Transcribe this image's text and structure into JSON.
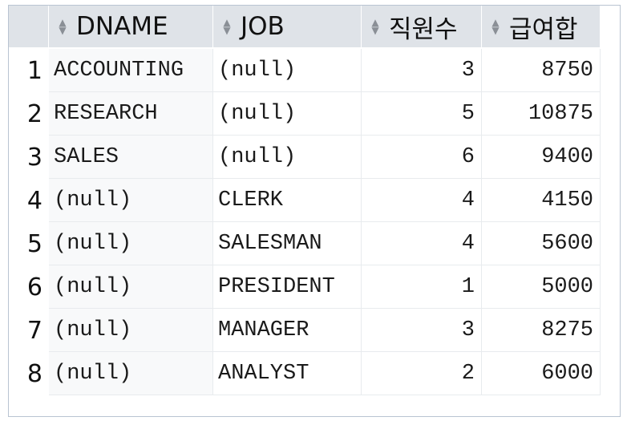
{
  "grid": {
    "columns": [
      {
        "label": "DNAME",
        "align": "left"
      },
      {
        "label": "JOB",
        "align": "left"
      },
      {
        "label": "직원수",
        "align": "right"
      },
      {
        "label": "급여합",
        "align": "right"
      }
    ],
    "rows": [
      {
        "num": "1",
        "dname": "ACCOUNTING",
        "job": "(null)",
        "count": "3",
        "sum": "8750"
      },
      {
        "num": "2",
        "dname": "RESEARCH",
        "job": "(null)",
        "count": "5",
        "sum": "10875"
      },
      {
        "num": "3",
        "dname": "SALES",
        "job": "(null)",
        "count": "6",
        "sum": "9400"
      },
      {
        "num": "4",
        "dname": "(null)",
        "job": "CLERK",
        "count": "4",
        "sum": "4150"
      },
      {
        "num": "5",
        "dname": "(null)",
        "job": "SALESMAN",
        "count": "4",
        "sum": "5600"
      },
      {
        "num": "6",
        "dname": "(null)",
        "job": "PRESIDENT",
        "count": "1",
        "sum": "5000"
      },
      {
        "num": "7",
        "dname": "(null)",
        "job": "MANAGER",
        "count": "3",
        "sum": "8275"
      },
      {
        "num": "8",
        "dname": "(null)",
        "job": "ANALYST",
        "count": "2",
        "sum": "6000"
      }
    ]
  },
  "icons": {
    "sort": "sort-arrows-icon"
  },
  "colors": {
    "header_bg": "#dfe3e8",
    "first_col_bg": "#f8f9fa",
    "border": "#b9c4d2",
    "gridline": "#e8ebee"
  }
}
